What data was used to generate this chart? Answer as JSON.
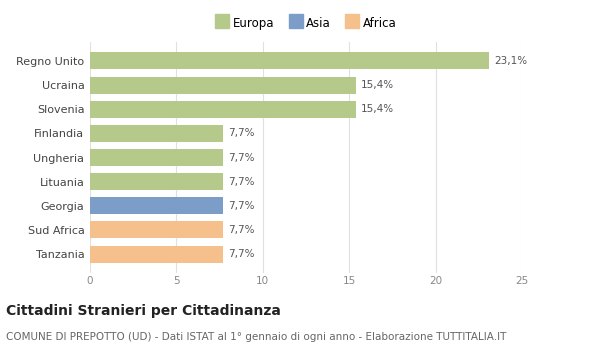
{
  "categories": [
    "Tanzania",
    "Sud Africa",
    "Georgia",
    "Lituania",
    "Ungheria",
    "Finlandia",
    "Slovenia",
    "Ucraina",
    "Regno Unito"
  ],
  "values": [
    7.7,
    7.7,
    7.7,
    7.7,
    7.7,
    7.7,
    15.4,
    15.4,
    23.1
  ],
  "labels": [
    "7,7%",
    "7,7%",
    "7,7%",
    "7,7%",
    "7,7%",
    "7,7%",
    "15,4%",
    "15,4%",
    "23,1%"
  ],
  "colors": [
    "#f5c08b",
    "#f5c08b",
    "#7b9dc7",
    "#b5c98a",
    "#b5c98a",
    "#b5c98a",
    "#b5c98a",
    "#b5c98a",
    "#b5c98a"
  ],
  "legend": [
    {
      "label": "Europa",
      "color": "#b5c98a"
    },
    {
      "label": "Asia",
      "color": "#7b9dc7"
    },
    {
      "label": "Africa",
      "color": "#f5c08b"
    }
  ],
  "xlim": [
    0,
    25
  ],
  "xticks": [
    0,
    5,
    10,
    15,
    20,
    25
  ],
  "title": "Cittadini Stranieri per Cittadinanza",
  "subtitle": "COMUNE DI PREPOTTO (UD) - Dati ISTAT al 1° gennaio di ogni anno - Elaborazione TUTTITALIA.IT",
  "bg_color": "#ffffff",
  "bar_height": 0.7,
  "label_fontsize": 7.5,
  "title_fontsize": 10,
  "subtitle_fontsize": 7.5,
  "grid_color": "#e0e0e0"
}
